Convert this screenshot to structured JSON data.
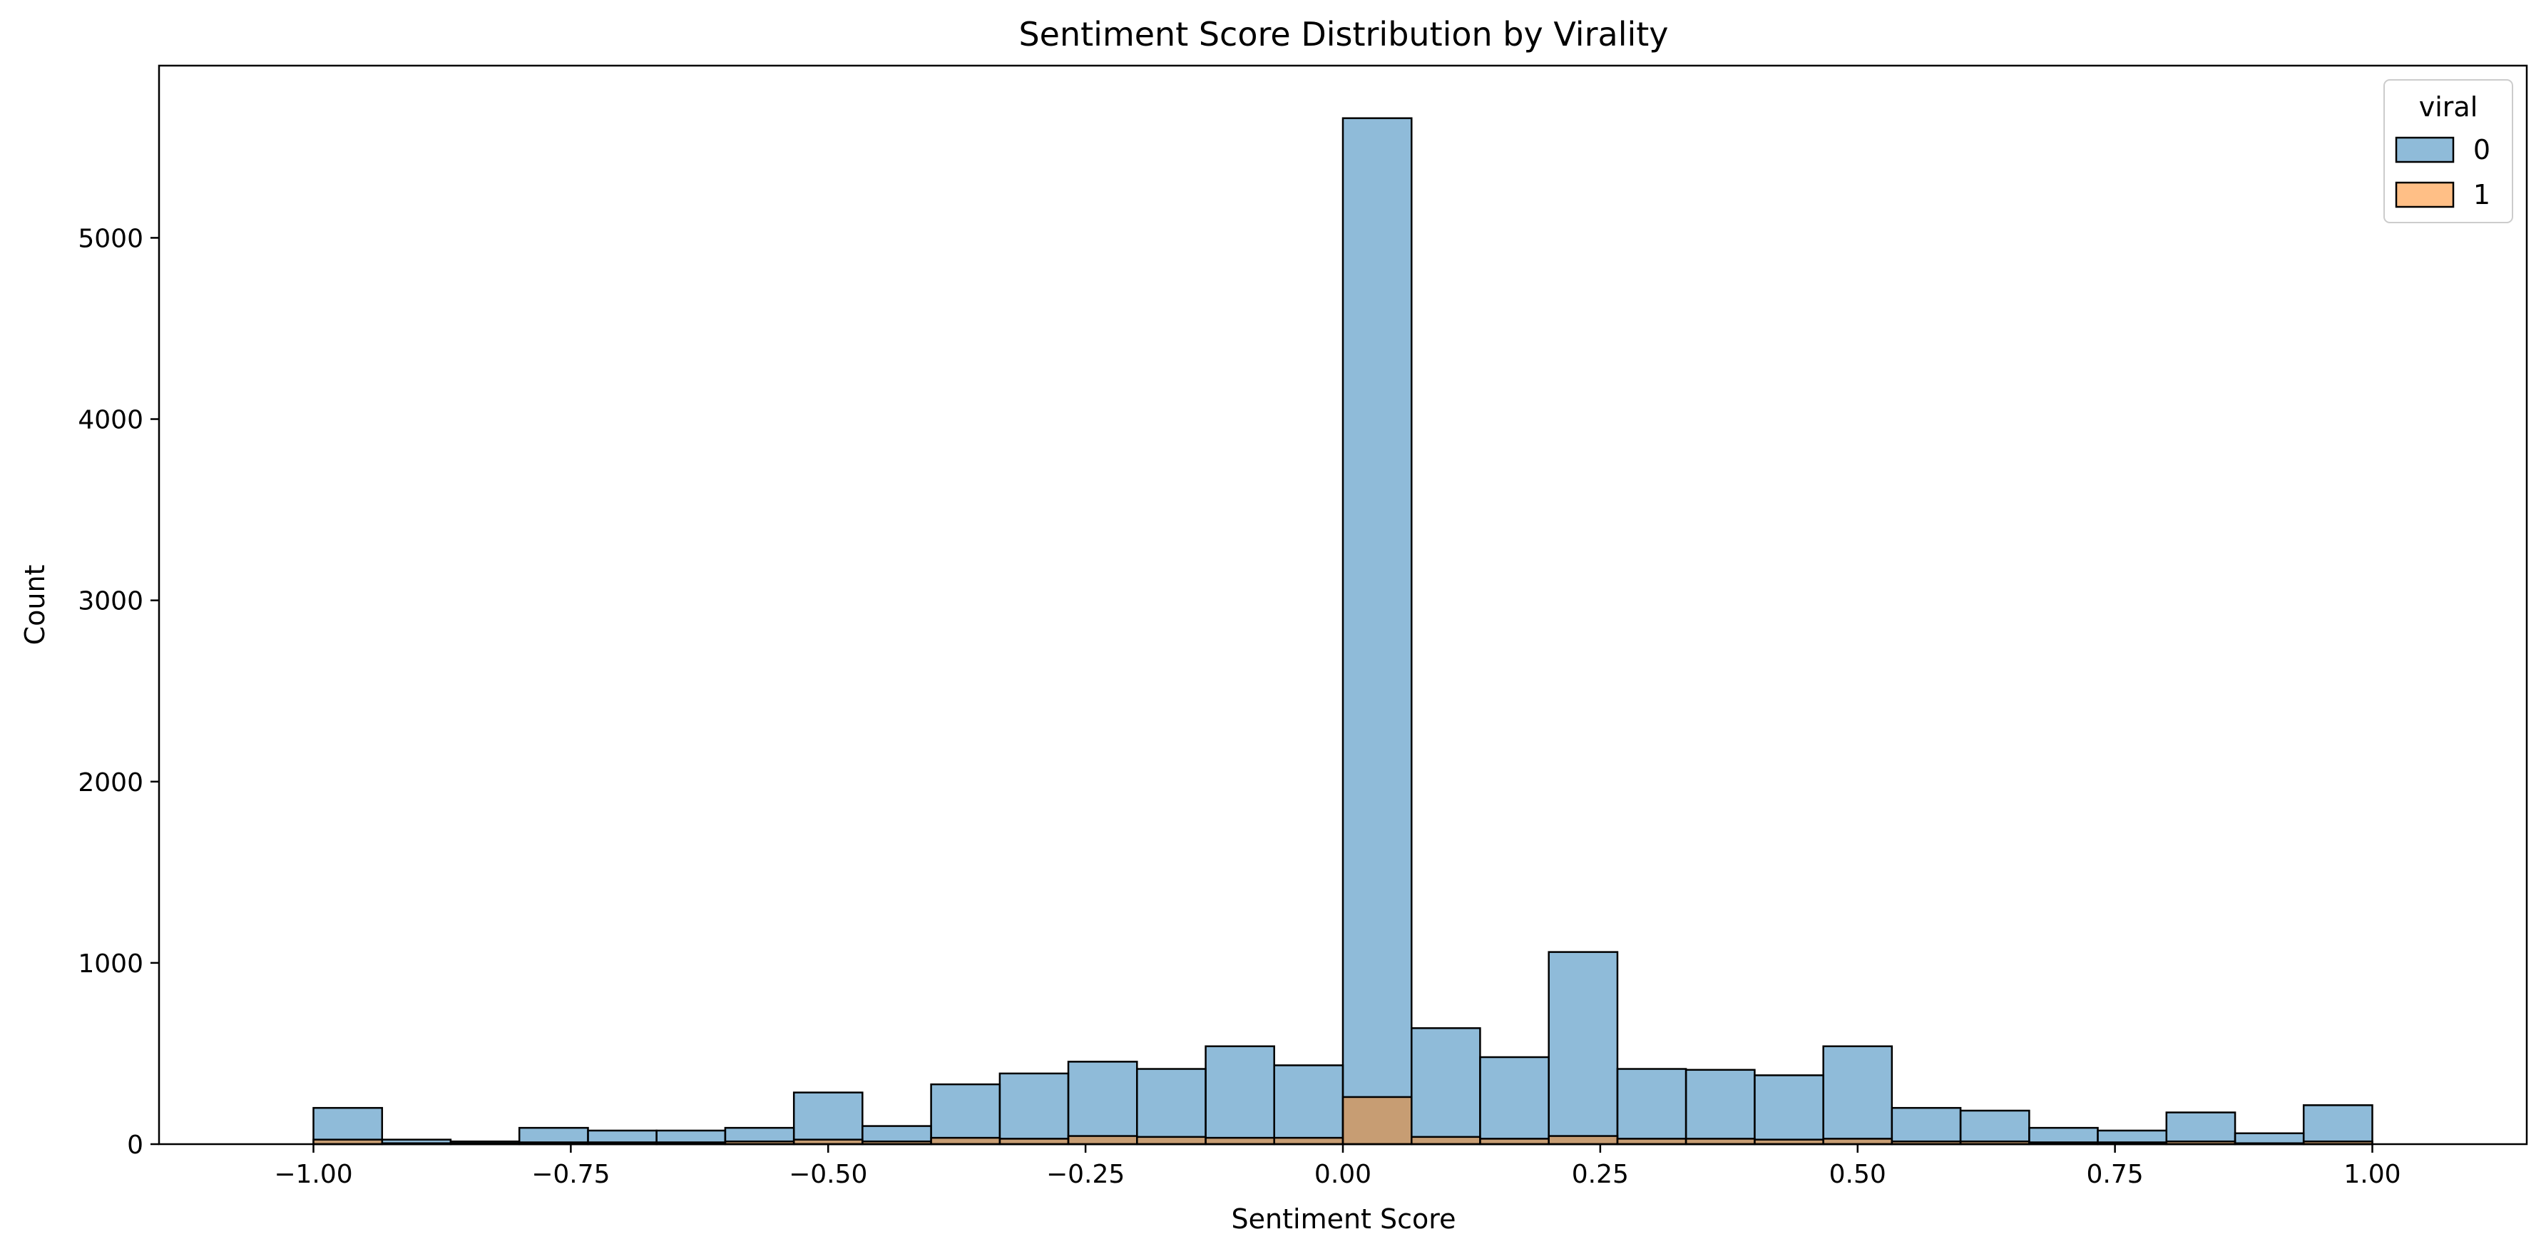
{
  "chart_data": {
    "type": "histogram",
    "title": "Sentiment Score Distribution by Virality",
    "xlabel": "Sentiment Score",
    "ylabel": "Count",
    "xlim": [
      -1.15,
      1.15
    ],
    "ylim": [
      0,
      5950
    ],
    "x_ticks": [
      -1.0,
      -0.75,
      -0.5,
      -0.25,
      0.0,
      0.25,
      0.5,
      0.75,
      1.0
    ],
    "x_tick_labels": [
      "−1.00",
      "−0.75",
      "−0.50",
      "−0.25",
      "0.00",
      "0.25",
      "0.50",
      "0.75",
      "1.00"
    ],
    "y_ticks": [
      0,
      1000,
      2000,
      3000,
      4000,
      5000
    ],
    "y_tick_labels": [
      "0",
      "1000",
      "2000",
      "3000",
      "4000",
      "5000"
    ],
    "bin_edges": [
      -1.0,
      -0.9333,
      -0.8667,
      -0.8,
      -0.7333,
      -0.6667,
      -0.6,
      -0.5333,
      -0.4667,
      -0.4,
      -0.3333,
      -0.2667,
      -0.2,
      -0.1333,
      -0.0667,
      0.0,
      0.0667,
      0.1333,
      0.2,
      0.2667,
      0.3333,
      0.4,
      0.4667,
      0.5333,
      0.6,
      0.6667,
      0.7333,
      0.8,
      0.8667,
      0.9333,
      1.0
    ],
    "series": [
      {
        "name": "0",
        "color": "#1f77b4",
        "values": [
          200,
          25,
          15,
          90,
          75,
          75,
          90,
          285,
          100,
          330,
          390,
          455,
          415,
          540,
          435,
          5660,
          640,
          480,
          1060,
          415,
          410,
          380,
          540,
          200,
          185,
          90,
          75,
          175,
          60,
          215
        ]
      },
      {
        "name": "1",
        "color": "#ff7f0e",
        "values": [
          25,
          5,
          5,
          10,
          10,
          10,
          15,
          25,
          15,
          35,
          30,
          45,
          40,
          35,
          35,
          260,
          40,
          30,
          45,
          30,
          30,
          25,
          30,
          15,
          15,
          10,
          10,
          15,
          5,
          15
        ]
      }
    ],
    "legend": {
      "title": "viral",
      "position": "top-right",
      "entries": [
        "0",
        "1"
      ]
    },
    "grid": false
  }
}
